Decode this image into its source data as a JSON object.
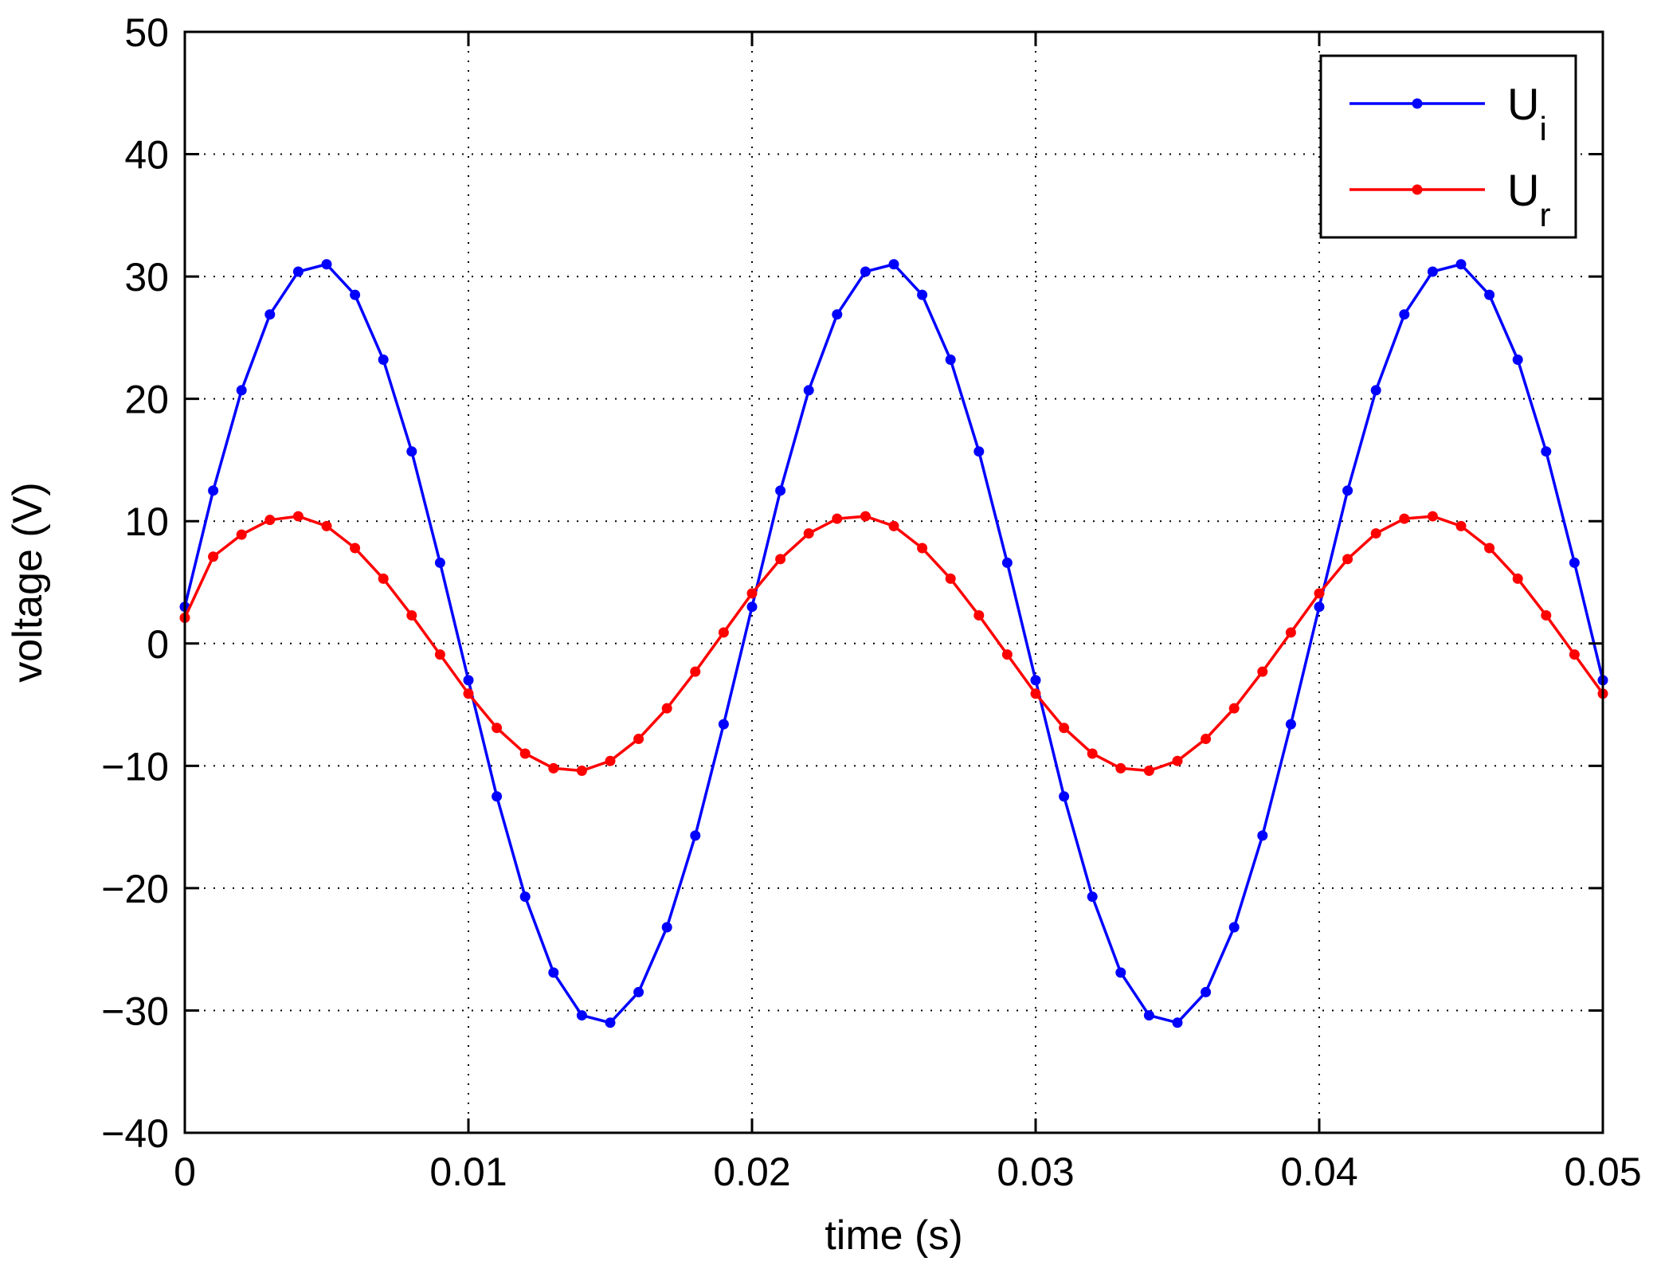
{
  "chart_data": {
    "type": "line",
    "xlabel": "time (s)",
    "ylabel": "voltage (V)",
    "xlim": [
      0,
      0.05
    ],
    "ylim": [
      -40,
      50
    ],
    "xticks": [
      0,
      0.01,
      0.02,
      0.03,
      0.04,
      0.05
    ],
    "xtick_labels": [
      "0",
      "0.01",
      "0.02",
      "0.03",
      "0.04",
      "0.05"
    ],
    "yticks": [
      -40,
      -30,
      -20,
      -10,
      0,
      10,
      20,
      30,
      40,
      50
    ],
    "ytick_labels": [
      "−40",
      "−30",
      "−20",
      "−10",
      "0",
      "10",
      "20",
      "30",
      "40",
      "50"
    ],
    "grid": true,
    "legend_position": "top-right",
    "x": [
      0,
      0.001,
      0.002,
      0.003,
      0.004,
      0.005,
      0.006,
      0.007,
      0.008,
      0.009,
      0.01,
      0.011,
      0.012,
      0.013,
      0.014,
      0.015,
      0.016,
      0.017,
      0.018,
      0.019,
      0.02,
      0.021,
      0.022,
      0.023,
      0.024,
      0.025,
      0.026,
      0.027,
      0.028,
      0.029,
      0.03,
      0.031,
      0.032,
      0.033,
      0.034,
      0.035,
      0.036,
      0.037,
      0.038,
      0.039,
      0.04,
      0.041,
      0.042,
      0.043,
      0.044,
      0.045,
      0.046,
      0.047,
      0.048,
      0.049,
      0.05
    ],
    "series": [
      {
        "name": "U",
        "name_sub": "i",
        "color": "#0000ff",
        "values": [
          3.0,
          12.5,
          20.7,
          26.9,
          30.4,
          31.0,
          28.5,
          23.2,
          15.7,
          6.6,
          -3.0,
          -12.5,
          -20.7,
          -26.9,
          -30.4,
          -31.0,
          -28.5,
          -23.2,
          -15.7,
          -6.6,
          3.0,
          12.5,
          20.7,
          26.9,
          30.4,
          31.0,
          28.5,
          23.2,
          15.7,
          6.6,
          -3.0,
          -12.5,
          -20.7,
          -26.9,
          -30.4,
          -31.0,
          -28.5,
          -23.2,
          -15.7,
          -6.6,
          3.0,
          12.5,
          20.7,
          26.9,
          30.4,
          31.0,
          28.5,
          23.2,
          15.7,
          6.6,
          -3.0
        ]
      },
      {
        "name": "U",
        "name_sub": "r",
        "color": "#ff0000",
        "values": [
          2.1,
          7.1,
          8.9,
          10.1,
          10.4,
          9.6,
          7.8,
          5.3,
          2.3,
          -0.9,
          -4.1,
          -6.9,
          -9.0,
          -10.2,
          -10.4,
          -9.6,
          -7.8,
          -5.3,
          -2.3,
          0.9,
          4.1,
          6.9,
          9.0,
          10.2,
          10.4,
          9.6,
          7.8,
          5.3,
          2.3,
          -0.9,
          -4.1,
          -6.9,
          -9.0,
          -10.2,
          -10.4,
          -9.6,
          -7.8,
          -5.3,
          -2.3,
          0.9,
          4.1,
          6.9,
          9.0,
          10.2,
          10.4,
          9.6,
          7.8,
          5.3,
          2.3,
          -0.9,
          -4.1
        ]
      }
    ]
  }
}
